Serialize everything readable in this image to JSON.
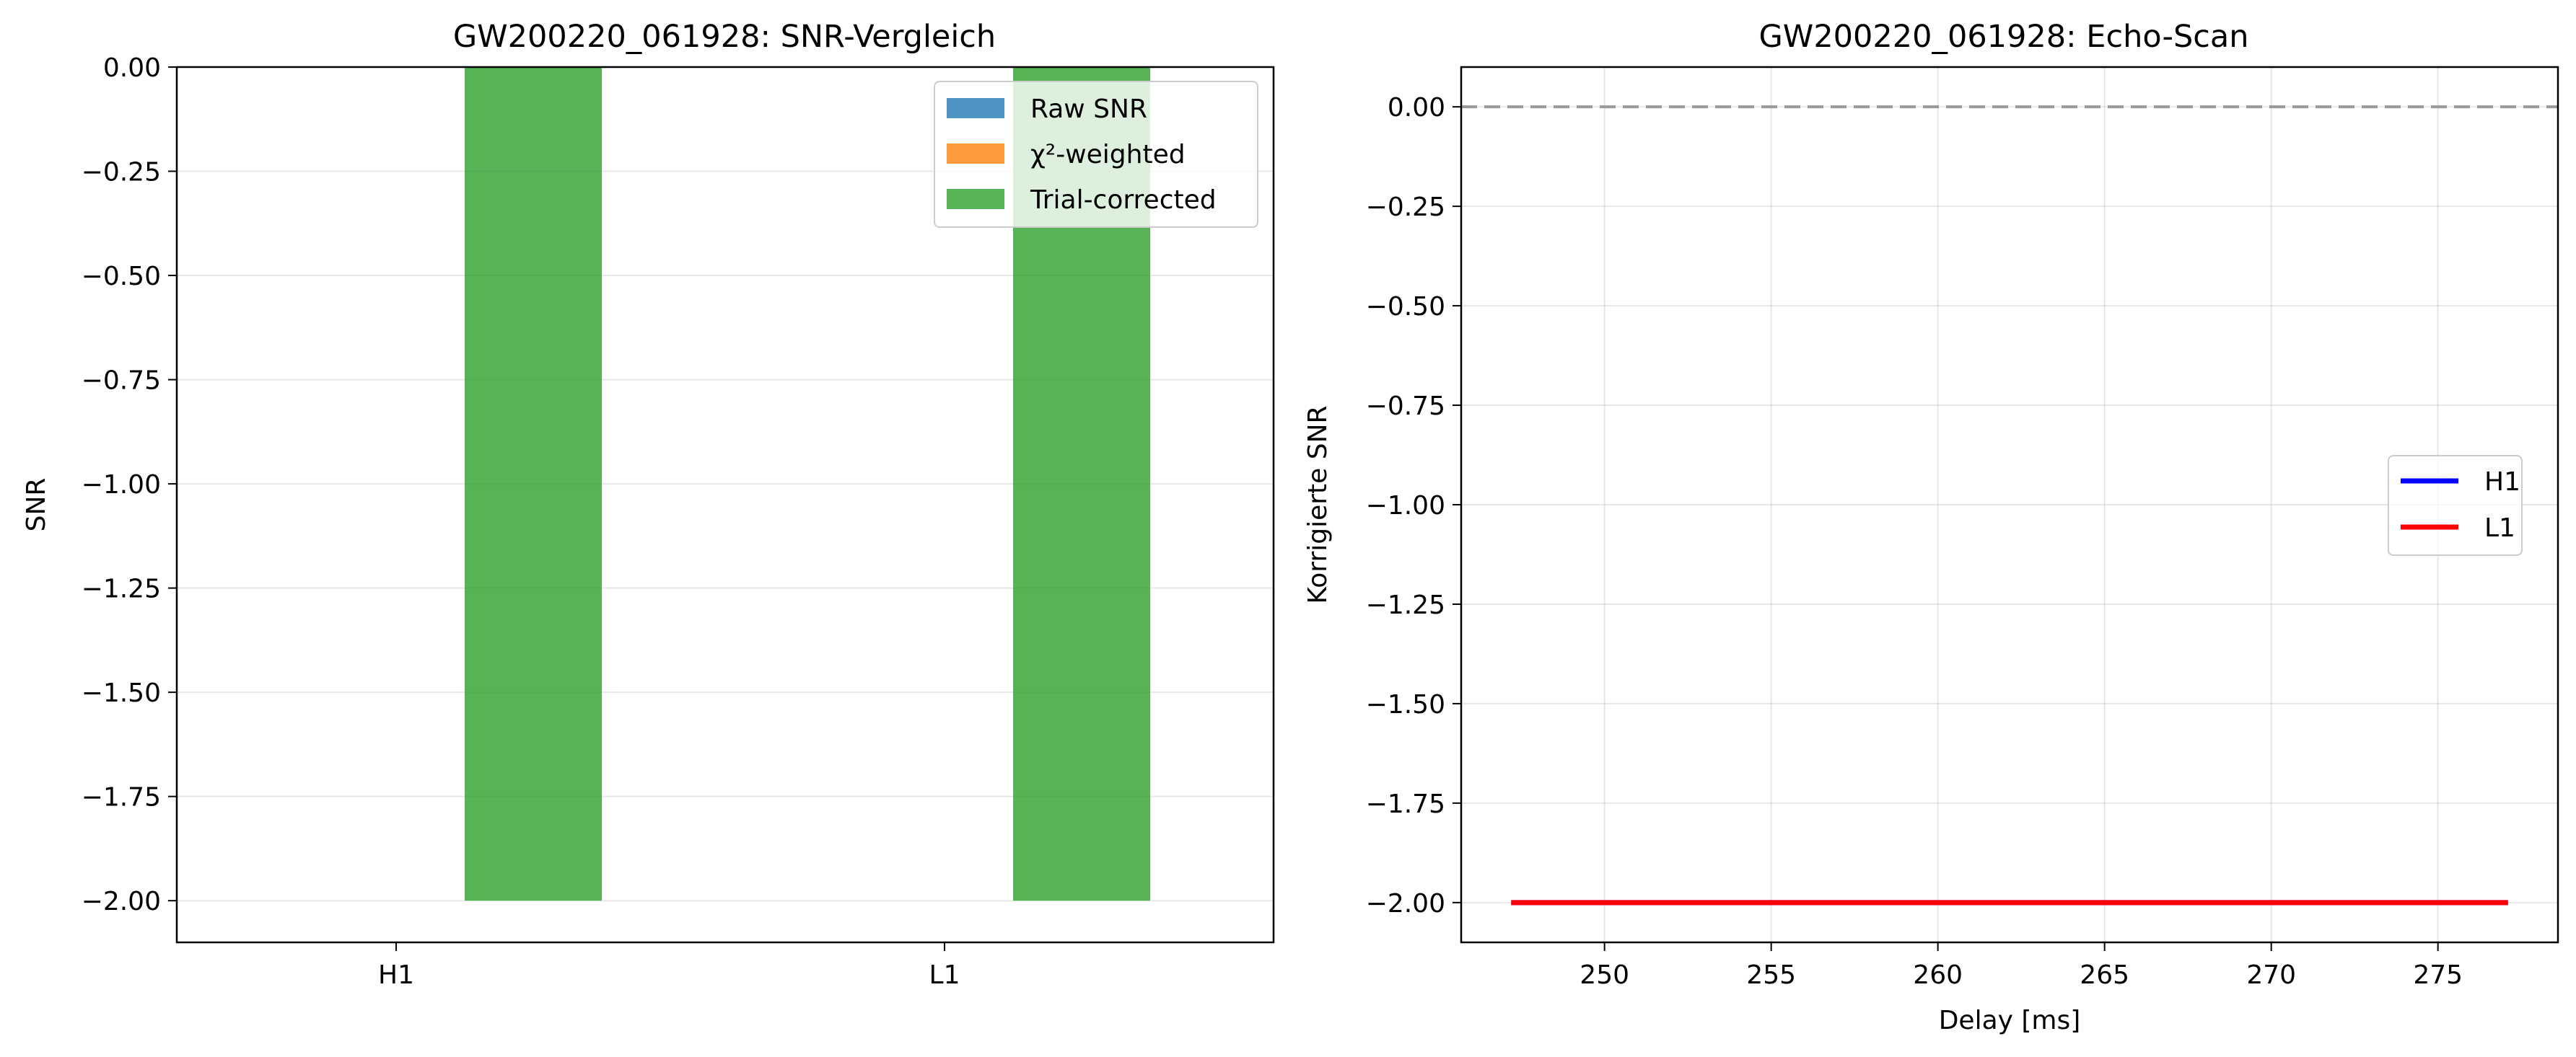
{
  "chart_data": [
    {
      "type": "bar",
      "title": "GW200220_061928: SNR-Vergleich",
      "xlabel": "",
      "ylabel": "SNR",
      "categories": [
        "H1",
        "L1"
      ],
      "series": [
        {
          "name": "Raw SNR",
          "values": [
            0.0,
            0.0
          ],
          "color": "#1f77b4"
        },
        {
          "name": "χ²-weighted",
          "values": [
            0.0,
            0.0
          ],
          "color": "#ff7f0e"
        },
        {
          "name": "Trial-corrected",
          "values": [
            -2.0,
            -2.0
          ],
          "color": "#2ca02c"
        }
      ],
      "ylim": [
        -2.1,
        0.0
      ],
      "yticks": [
        0.0,
        -0.25,
        -0.5,
        -0.75,
        -1.0,
        -1.25,
        -1.5,
        -1.75,
        -2.0
      ],
      "ytick_labels": [
        "0.00",
        "−0.25",
        "−0.50",
        "−0.75",
        "−1.00",
        "−1.25",
        "−1.50",
        "−1.75",
        "−2.00"
      ],
      "grid": "y",
      "legend_position": "top-right"
    },
    {
      "type": "line",
      "title": "GW200220_061928: Echo-Scan",
      "xlabel": "Delay [ms]",
      "ylabel": "Korrigierte SNR",
      "series": [
        {
          "name": "H1",
          "x": [
            247.2,
            277.1
          ],
          "y": [
            -2.0,
            -2.0
          ],
          "color": "#0000ff"
        },
        {
          "name": "L1",
          "x": [
            247.2,
            277.1
          ],
          "y": [
            -2.0,
            -2.0
          ],
          "color": "#ff0000"
        }
      ],
      "reference_line": {
        "y": 0.0,
        "style": "dashed",
        "color": "#999999"
      },
      "xlim": [
        245.7,
        278.6
      ],
      "ylim": [
        -2.1,
        0.1
      ],
      "xticks": [
        250,
        255,
        260,
        265,
        270,
        275
      ],
      "xtick_labels": [
        "250",
        "255",
        "260",
        "265",
        "270",
        "275"
      ],
      "yticks": [
        0.0,
        -0.25,
        -0.5,
        -0.75,
        -1.0,
        -1.25,
        -1.5,
        -1.75,
        -2.0
      ],
      "ytick_labels": [
        "0.00",
        "−0.25",
        "−0.50",
        "−0.75",
        "−1.00",
        "−1.25",
        "−1.50",
        "−1.75",
        "−2.00"
      ],
      "grid": "both",
      "legend_position": "center-right"
    }
  ]
}
